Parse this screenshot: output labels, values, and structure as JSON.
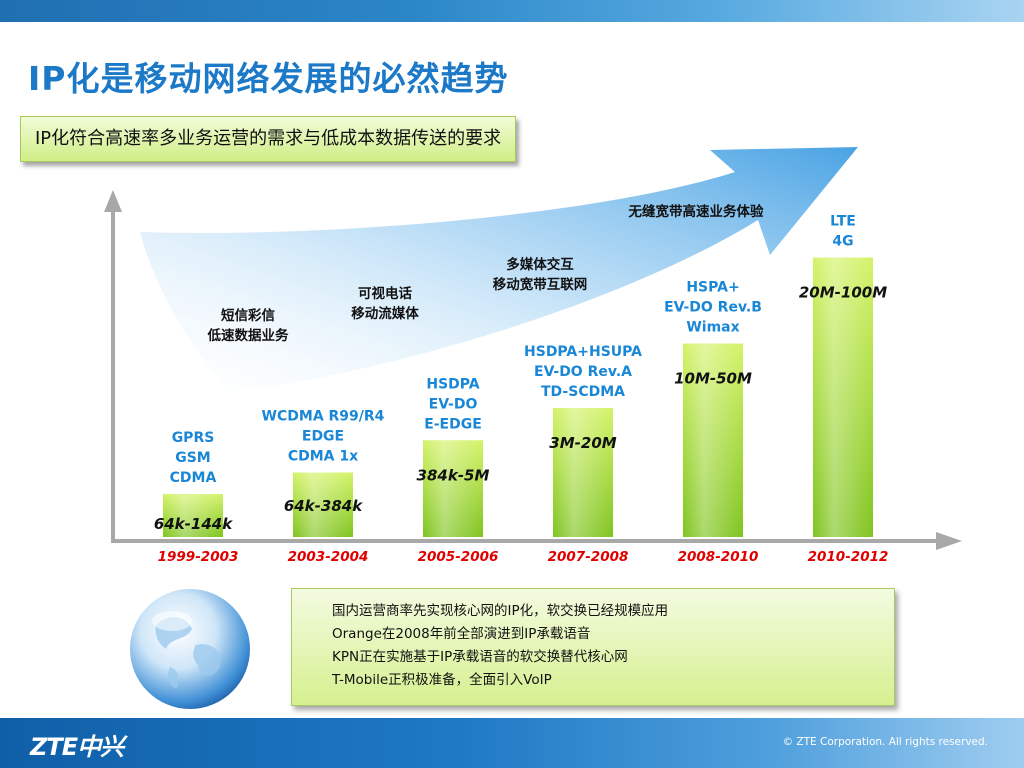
{
  "title": "IP化是移动网络发展的必然趋势",
  "subtitle": "IP化符合高速率多业务运营的需求与低成本数据传送的要求",
  "chart_data": {
    "type": "bar",
    "categories": [
      "1999-2003",
      "2003-2004",
      "2005-2006",
      "2007-2008",
      "2008-2010",
      "2010-2012"
    ],
    "values": [
      0.2,
      0.3,
      0.45,
      0.6,
      0.9,
      1.3
    ],
    "value_labels": [
      "64k-144k",
      "64k-384k",
      "384k-5M",
      "3M-20M",
      "10M-50M",
      "20M-100M"
    ],
    "technologies": [
      [
        "GPRS",
        "GSM",
        "CDMA"
      ],
      [
        "WCDMA R99/R4",
        "EDGE",
        "CDMA 1x"
      ],
      [
        "HSDPA",
        "EV-DO",
        "E-EDGE"
      ],
      [
        "HSDPA+HSUPA",
        "EV-DO Rev.A",
        "TD-SCDMA"
      ],
      [
        "HSPA+",
        "EV-DO Rev.B",
        "Wimax"
      ],
      [
        "LTE",
        "4G"
      ]
    ],
    "services": [
      [
        "短信彩信",
        "低速数据业务"
      ],
      [
        "可视电话",
        "移动流媒体"
      ],
      [
        "多媒体交互",
        "移动宽带互联网"
      ],
      [
        "无缝宽带高速业务体验"
      ]
    ],
    "xlabel": "",
    "ylabel": "",
    "grid": false,
    "colors": {
      "bar_top": "#d4f36a",
      "bar_bottom": "#7fc41f",
      "tech_text": "#1a87d6",
      "period_text": "#e00000",
      "value_text": "#111111",
      "axis": "#a8a8a8",
      "arrow": "#6cb6ea"
    }
  },
  "notes": [
    "国内运营商率先实现核心网的IP化，软交换已经规模应用",
    "Orange在2008年前全部演进到IP承载语音",
    "KPN正在实施基于IP承载语音的软交换替代核心网",
    "T-Mobile正积极准备，全面引入VoIP"
  ],
  "footer": {
    "logo": "ZTE中兴",
    "copyright": "© ZTE Corporation. All rights reserved."
  }
}
